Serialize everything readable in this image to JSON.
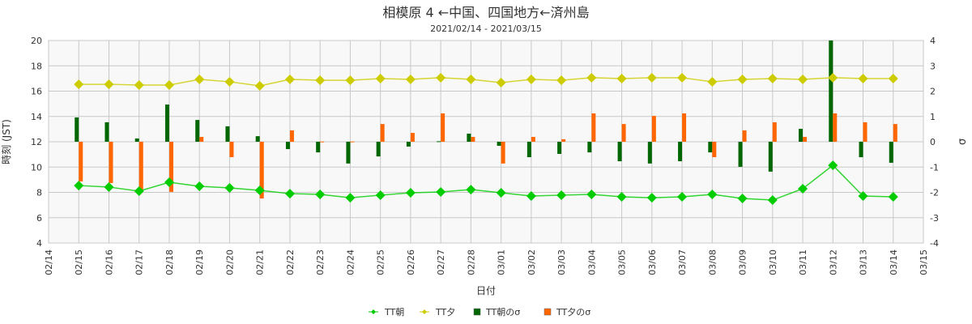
{
  "chart_data": {
    "type": "bar+line",
    "title": "相模原  4  ←中国、四国地方←済州島",
    "subtitle": "2021/02/14 - 2021/03/15",
    "xlabel": "日付",
    "ylabel": "時刻 (JST)",
    "y2label": "σ",
    "ylim": [
      4,
      20
    ],
    "y2lim": [
      -4,
      4
    ],
    "yticks": [
      "4",
      "6",
      "8",
      "10",
      "12",
      "14",
      "16",
      "18",
      "20"
    ],
    "y2ticks": [
      "-4",
      "-3",
      "-2",
      "-1",
      "0",
      "1",
      "2",
      "3",
      "4"
    ],
    "grid": true,
    "legend_position": "bottom",
    "x_ticks": [
      "02/14",
      "02/15",
      "02/16",
      "02/17",
      "02/18",
      "02/19",
      "02/20",
      "02/21",
      "02/22",
      "02/23",
      "02/24",
      "02/25",
      "02/26",
      "02/27",
      "02/28",
      "03/01",
      "03/02",
      "03/03",
      "03/04",
      "03/05",
      "03/06",
      "03/07",
      "03/08",
      "03/09",
      "03/10",
      "03/11",
      "03/12",
      "03/13",
      "03/14",
      "03/15"
    ],
    "categories": [
      "02/15",
      "02/16",
      "02/17",
      "02/18",
      "02/19",
      "02/20",
      "02/21",
      "02/22",
      "02/23",
      "02/24",
      "02/25",
      "02/26",
      "02/27",
      "02/28",
      "03/01",
      "03/02",
      "03/03",
      "03/04",
      "03/05",
      "03/06",
      "03/07",
      "03/08",
      "03/09",
      "03/10",
      "03/11",
      "03/12",
      "03/13",
      "03/14"
    ],
    "series": [
      {
        "name": "TT朝",
        "type": "line",
        "axis": "left",
        "color": "#00cc00",
        "values": [
          8.54,
          8.42,
          8.1,
          8.8,
          8.48,
          8.35,
          8.16,
          7.9,
          7.84,
          7.58,
          7.78,
          7.97,
          8.03,
          8.22,
          7.97,
          7.71,
          7.78,
          7.84,
          7.65,
          7.58,
          7.65,
          7.84,
          7.52,
          7.39,
          8.29,
          10.14,
          7.71,
          7.65
        ]
      },
      {
        "name": "TT夕",
        "type": "line",
        "axis": "left",
        "color": "#cccc00",
        "values": [
          16.54,
          16.54,
          16.48,
          16.48,
          16.93,
          16.74,
          16.42,
          16.93,
          16.86,
          16.86,
          16.99,
          16.93,
          17.06,
          16.93,
          16.67,
          16.93,
          16.86,
          17.06,
          16.99,
          17.06,
          17.06,
          16.74,
          16.93,
          16.99,
          16.93,
          17.06,
          16.99,
          16.99
        ]
      },
      {
        "name": "TT朝のσ",
        "type": "bar",
        "axis": "right",
        "color": "#006600",
        "values": [
          0.96,
          0.77,
          0.13,
          1.47,
          0.86,
          0.61,
          0.22,
          -0.29,
          -0.42,
          -0.86,
          -0.58,
          -0.19,
          0.02,
          0.32,
          -0.16,
          -0.61,
          -0.48,
          -0.42,
          -0.77,
          -0.86,
          -0.77,
          -0.42,
          -0.99,
          -1.18,
          0.51,
          4.0,
          -0.61,
          -0.83
        ]
      },
      {
        "name": "TT夕のσ",
        "type": "bar",
        "axis": "right",
        "color": "#ff6600",
        "values": [
          -1.57,
          -1.63,
          -1.95,
          -1.98,
          0.19,
          -0.61,
          -2.24,
          0.45,
          0.01,
          0.01,
          0.7,
          0.35,
          1.12,
          0.19,
          -0.86,
          0.19,
          0.1,
          1.12,
          0.7,
          1.02,
          1.12,
          -0.61,
          0.45,
          0.77,
          0.19,
          1.12,
          0.77,
          0.7
        ]
      }
    ]
  }
}
